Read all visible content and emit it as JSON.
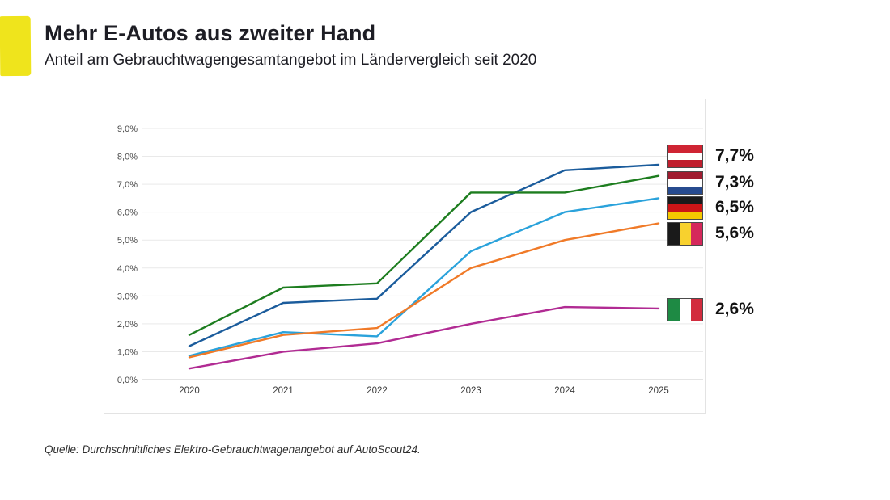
{
  "header": {
    "title": "Mehr E-Autos aus zweiter Hand",
    "subtitle": "Anteil am Gebrauchtwagengesamtangebot im Ländervergleich seit 2020"
  },
  "source": "Quelle: Durchschnittliches Elektro-Gebrauchtwagenangebot auf AutoScout24.",
  "accent_color": "#efe41c",
  "chart_data": {
    "type": "line",
    "x": [
      "2020",
      "2021",
      "2022",
      "2023",
      "2024",
      "2025"
    ],
    "xlabel": "",
    "ylabel": "",
    "ylim": [
      0,
      9
    ],
    "ytick_step": 1,
    "ytick_labels": [
      "0,0%",
      "1,0%",
      "2,0%",
      "3,0%",
      "4,0%",
      "5,0%",
      "6,0%",
      "7,0%",
      "8,0%",
      "9,0%"
    ],
    "grid": true,
    "legend_position": "right-of-line-end",
    "series": [
      {
        "name": "Austria",
        "color": "#1b5c9c",
        "values": [
          1.2,
          2.75,
          2.9,
          6.0,
          7.5,
          7.7
        ],
        "end_label": "7,7%",
        "flag": {
          "orientation": "horizontal",
          "stripes": [
            "#cf2433",
            "#ffffff",
            "#c01f2e"
          ]
        }
      },
      {
        "name": "Netherlands",
        "color": "#1d7d1f",
        "values": [
          1.6,
          3.3,
          3.45,
          6.7,
          6.7,
          7.3
        ],
        "end_label": "7,3%",
        "flag": {
          "orientation": "horizontal",
          "stripes": [
            "#a01c30",
            "#ffffff",
            "#274b8f"
          ]
        }
      },
      {
        "name": "Germany",
        "color": "#2aa2db",
        "values": [
          0.85,
          1.7,
          1.55,
          4.6,
          6.0,
          6.5
        ],
        "end_label": "6,5%",
        "flag": {
          "orientation": "horizontal",
          "stripes": [
            "#1a1a1a",
            "#cc1517",
            "#f5c800"
          ]
        }
      },
      {
        "name": "Belgium",
        "color": "#f07a28",
        "values": [
          0.8,
          1.6,
          1.85,
          4.0,
          5.0,
          5.6
        ],
        "end_label": "5,6%",
        "flag": {
          "orientation": "vertical",
          "stripes": [
            "#1a1a1a",
            "#f8d12e",
            "#d5285b"
          ]
        }
      },
      {
        "name": "Italy",
        "color": "#b12b93",
        "values": [
          0.4,
          1.0,
          1.3,
          2.0,
          2.6,
          2.55
        ],
        "end_label": "2,6%",
        "flag": {
          "orientation": "vertical",
          "stripes": [
            "#1e8a44",
            "#ffffff",
            "#d22c3e"
          ]
        }
      }
    ]
  }
}
